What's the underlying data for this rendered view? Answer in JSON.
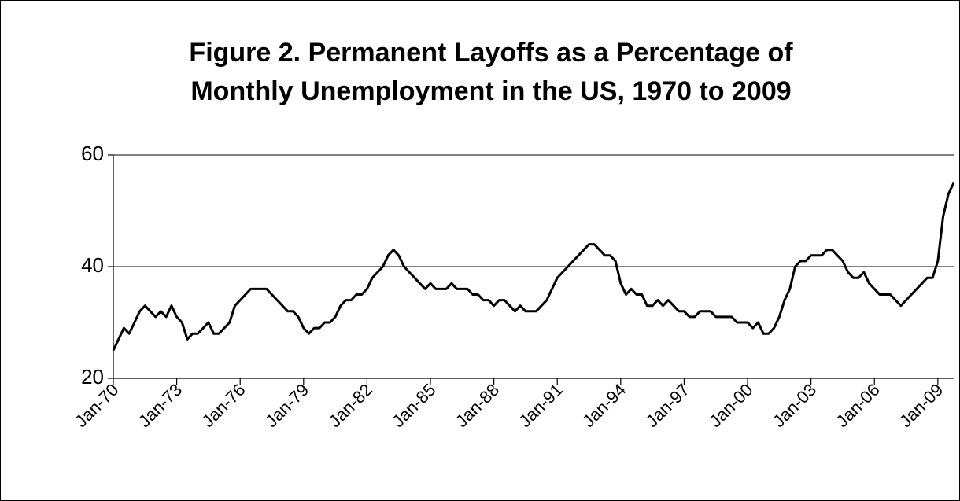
{
  "chart_data": {
    "type": "line",
    "title": [
      "Figure 2.  Permanent Layoffs as a Percentage of",
      "Monthly Unemployment in the US, 1970 to 2009"
    ],
    "x": [
      "1970-01",
      "1970-04",
      "1970-07",
      "1970-10",
      "1971-01",
      "1971-04",
      "1971-07",
      "1971-10",
      "1972-01",
      "1972-04",
      "1972-07",
      "1972-10",
      "1973-01",
      "1973-04",
      "1973-07",
      "1973-10",
      "1974-01",
      "1974-04",
      "1974-07",
      "1974-10",
      "1975-01",
      "1975-04",
      "1975-07",
      "1975-10",
      "1976-01",
      "1976-04",
      "1976-07",
      "1976-10",
      "1977-01",
      "1977-04",
      "1977-07",
      "1977-10",
      "1978-01",
      "1978-04",
      "1978-07",
      "1978-10",
      "1979-01",
      "1979-04",
      "1979-07",
      "1979-10",
      "1980-01",
      "1980-04",
      "1980-07",
      "1980-10",
      "1981-01",
      "1981-04",
      "1981-07",
      "1981-10",
      "1982-01",
      "1982-04",
      "1982-07",
      "1982-10",
      "1983-01",
      "1983-04",
      "1983-07",
      "1983-10",
      "1984-01",
      "1984-04",
      "1984-07",
      "1984-10",
      "1985-01",
      "1985-04",
      "1985-07",
      "1985-10",
      "1986-01",
      "1986-04",
      "1986-07",
      "1986-10",
      "1987-01",
      "1987-04",
      "1987-07",
      "1987-10",
      "1988-01",
      "1988-04",
      "1988-07",
      "1988-10",
      "1989-01",
      "1989-04",
      "1989-07",
      "1989-10",
      "1990-01",
      "1990-04",
      "1990-07",
      "1990-10",
      "1991-01",
      "1991-04",
      "1991-07",
      "1991-10",
      "1992-01",
      "1992-04",
      "1992-07",
      "1992-10",
      "1993-01",
      "1993-04",
      "1993-07",
      "1993-10",
      "1994-01",
      "1994-04",
      "1994-07",
      "1994-10",
      "1995-01",
      "1995-04",
      "1995-07",
      "1995-10",
      "1996-01",
      "1996-04",
      "1996-07",
      "1996-10",
      "1997-01",
      "1997-04",
      "1997-07",
      "1997-10",
      "1998-01",
      "1998-04",
      "1998-07",
      "1998-10",
      "1999-01",
      "1999-04",
      "1999-07",
      "1999-10",
      "2000-01",
      "2000-04",
      "2000-07",
      "2000-10",
      "2001-01",
      "2001-04",
      "2001-07",
      "2001-10",
      "2002-01",
      "2002-04",
      "2002-07",
      "2002-10",
      "2003-01",
      "2003-04",
      "2003-07",
      "2003-10",
      "2004-01",
      "2004-04",
      "2004-07",
      "2004-10",
      "2005-01",
      "2005-04",
      "2005-07",
      "2005-10",
      "2006-01",
      "2006-04",
      "2006-07",
      "2006-10",
      "2007-01",
      "2007-04",
      "2007-07",
      "2007-10",
      "2008-01",
      "2008-04",
      "2008-07",
      "2008-10",
      "2009-01",
      "2009-04",
      "2009-07",
      "2009-10"
    ],
    "values": [
      25,
      27,
      29,
      28,
      30,
      32,
      33,
      32,
      31,
      32,
      31,
      33,
      31,
      30,
      27,
      28,
      28,
      29,
      30,
      28,
      28,
      29,
      30,
      33,
      34,
      35,
      36,
      36,
      36,
      36,
      35,
      34,
      33,
      32,
      32,
      31,
      29,
      28,
      29,
      29,
      30,
      30,
      31,
      33,
      34,
      34,
      35,
      35,
      36,
      38,
      39,
      40,
      42,
      43,
      42,
      40,
      39,
      38,
      37,
      36,
      37,
      36,
      36,
      36,
      37,
      36,
      36,
      36,
      35,
      35,
      34,
      34,
      33,
      34,
      34,
      33,
      32,
      33,
      32,
      32,
      32,
      33,
      34,
      36,
      38,
      39,
      40,
      41,
      42,
      43,
      44,
      44,
      43,
      42,
      42,
      41,
      37,
      35,
      36,
      35,
      35,
      33,
      33,
      34,
      33,
      34,
      33,
      32,
      32,
      31,
      31,
      32,
      32,
      32,
      31,
      31,
      31,
      31,
      30,
      30,
      30,
      29,
      30,
      28,
      28,
      29,
      31,
      34,
      36,
      40,
      41,
      41,
      42,
      42,
      42,
      43,
      43,
      42,
      41,
      39,
      38,
      38,
      39,
      37,
      36,
      35,
      35,
      35,
      34,
      33,
      34,
      35,
      36,
      37,
      38,
      38,
      41,
      49,
      53,
      55
    ],
    "color": "#000000",
    "xlim": [
      "1970-01",
      "2009-10"
    ],
    "xticks": [
      {
        "value": "1970-01",
        "label": "Jan-70"
      },
      {
        "value": "1973-01",
        "label": "Jan-73"
      },
      {
        "value": "1976-01",
        "label": "Jan-76"
      },
      {
        "value": "1979-01",
        "label": "Jan-79"
      },
      {
        "value": "1982-01",
        "label": "Jan-82"
      },
      {
        "value": "1985-01",
        "label": "Jan-85"
      },
      {
        "value": "1988-01",
        "label": "Jan-88"
      },
      {
        "value": "1991-01",
        "label": "Jan-91"
      },
      {
        "value": "1994-01",
        "label": "Jan-94"
      },
      {
        "value": "1997-01",
        "label": "Jan-97"
      },
      {
        "value": "2000-01",
        "label": "Jan-00"
      },
      {
        "value": "2003-01",
        "label": "Jan-03"
      },
      {
        "value": "2006-01",
        "label": "Jan-06"
      },
      {
        "value": "2009-01",
        "label": "Jan-09"
      }
    ],
    "ylim": [
      20,
      60
    ],
    "yticks": [
      20,
      40,
      60
    ],
    "grid": true
  }
}
